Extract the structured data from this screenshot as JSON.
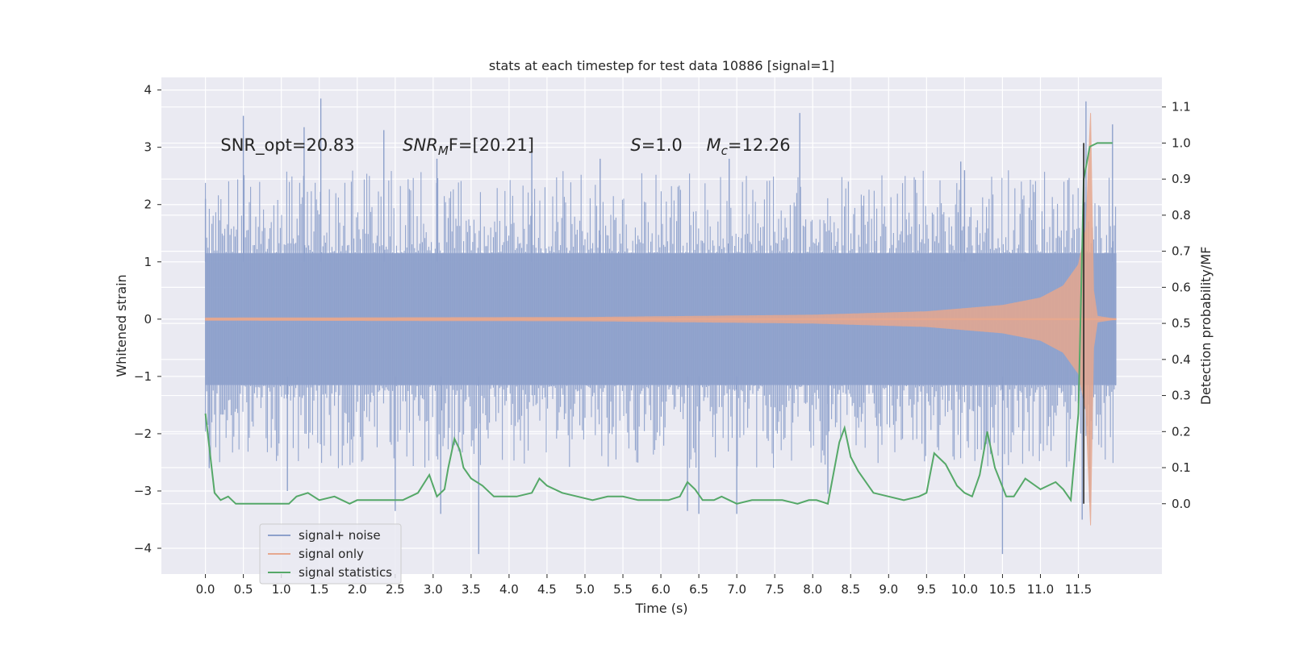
{
  "chart_data": {
    "type": "line",
    "title": "stats at each timestep for test data 10886 [signal=1]",
    "xlabel": "Time (s)",
    "ylabel": "Whitened strain",
    "y2label": "Detection probability/MF",
    "xlim": [
      -0.58,
      12.6
    ],
    "ylim": [
      -4.45,
      4.22
    ],
    "y2lim": [
      -0.195,
      1.182
    ],
    "x_ticks": [
      "0.0",
      "0.5",
      "1.0",
      "1.5",
      "2.0",
      "2.5",
      "3.0",
      "3.5",
      "4.0",
      "4.5",
      "5.0",
      "5.5",
      "6.0",
      "6.5",
      "7.0",
      "7.5",
      "8.0",
      "8.5",
      "9.0",
      "9.5",
      "10.0",
      "10.5",
      "11.0",
      "11.5"
    ],
    "y_ticks": [
      "4",
      "3",
      "2",
      "1",
      "0",
      "−1",
      "−2",
      "−3",
      "−4"
    ],
    "y2_ticks": [
      "1.1",
      "1.0",
      "0.9",
      "0.8",
      "0.7",
      "0.6",
      "0.5",
      "0.4",
      "0.3",
      "0.2",
      "0.1",
      "0.0"
    ],
    "annotations": [
      {
        "text": "SNR_opt=20.83",
        "x": 0.2,
        "y": 3.05
      },
      {
        "prefix": "SNR",
        "sub": "M",
        "suffix": "F=[20.21]",
        "x": 2.6,
        "y": 3.05
      },
      {
        "prefix": "S",
        "suffix": "=1.0",
        "x": 5.6,
        "y": 3.05
      },
      {
        "prefix": "M",
        "sub": "c",
        "suffix": "=12.26",
        "x": 6.6,
        "y": 3.05
      }
    ],
    "vlines": [
      {
        "x": 11.57,
        "y2_from": 0.0,
        "y2_to": 1.0
      }
    ],
    "legend": {
      "position": "lower-left",
      "entries": [
        {
          "label": "signal+ noise",
          "color": "#8da0cb"
        },
        {
          "label": "signal only",
          "color": "#e6a88f"
        },
        {
          "label": "signal statistics",
          "color": "#55a868"
        }
      ]
    },
    "series": [
      {
        "kind": "noise",
        "color": "#8da0cb",
        "x_range": [
          0.0,
          12.0
        ],
        "band_envelope": 1.15,
        "spikes_up": [
          [
            0.0,
            2.1
          ],
          [
            0.5,
            3.55
          ],
          [
            1.3,
            3.35
          ],
          [
            1.52,
            3.85
          ],
          [
            2.35,
            3.3
          ],
          [
            3.05,
            2.8
          ],
          [
            4.3,
            2.9
          ],
          [
            5.2,
            2.8
          ],
          [
            6.9,
            2.8
          ],
          [
            7.83,
            3.6
          ],
          [
            9.95,
            2.75
          ],
          [
            10.0,
            2.6
          ],
          [
            11.6,
            3.8
          ],
          [
            11.95,
            3.4
          ]
        ],
        "spikes_down": [
          [
            0.05,
            -2.6
          ],
          [
            1.08,
            -3.0
          ],
          [
            2.5,
            -3.35
          ],
          [
            3.1,
            -3.4
          ],
          [
            3.6,
            -4.1
          ],
          [
            6.35,
            -3.35
          ],
          [
            6.5,
            -3.4
          ],
          [
            7.0,
            -3.4
          ],
          [
            8.2,
            -3.05
          ],
          [
            10.5,
            -4.1
          ],
          [
            11.55,
            -3.5
          ],
          [
            11.65,
            -3.2
          ]
        ]
      },
      {
        "name": "signal only",
        "kind": "chirp",
        "color": "#e6a88f",
        "x_range": [
          0.0,
          12.0
        ],
        "merger_time": 11.68,
        "envelope": [
          [
            0.0,
            0.02
          ],
          [
            5.0,
            0.03
          ],
          [
            8.0,
            0.07
          ],
          [
            9.5,
            0.13
          ],
          [
            10.5,
            0.24
          ],
          [
            11.0,
            0.37
          ],
          [
            11.3,
            0.58
          ],
          [
            11.5,
            0.95
          ],
          [
            11.6,
            1.6
          ],
          [
            11.66,
            3.6
          ],
          [
            11.7,
            0.5
          ],
          [
            11.75,
            0.05
          ],
          [
            12.0,
            0.0
          ]
        ]
      },
      {
        "name": "signal statistics",
        "kind": "stat",
        "color": "#55a868",
        "x": [
          0.0,
          0.12,
          0.2,
          0.3,
          0.4,
          0.55,
          0.7,
          0.9,
          1.0,
          1.1,
          1.2,
          1.35,
          1.5,
          1.7,
          1.8,
          1.9,
          2.0,
          2.2,
          2.4,
          2.6,
          2.8,
          2.95,
          3.05,
          3.15,
          3.2,
          3.28,
          3.35,
          3.4,
          3.5,
          3.65,
          3.8,
          3.95,
          4.1,
          4.3,
          4.4,
          4.5,
          4.7,
          4.9,
          5.1,
          5.3,
          5.5,
          5.7,
          5.9,
          6.1,
          6.25,
          6.35,
          6.45,
          6.55,
          6.7,
          6.8,
          6.9,
          7.0,
          7.2,
          7.4,
          7.6,
          7.8,
          7.95,
          8.05,
          8.2,
          8.35,
          8.42,
          8.5,
          8.6,
          8.8,
          9.0,
          9.2,
          9.4,
          9.5,
          9.6,
          9.75,
          9.9,
          10.0,
          10.1,
          10.2,
          10.3,
          10.4,
          10.55,
          10.65,
          10.8,
          11.0,
          11.1,
          11.2,
          11.3,
          11.4,
          11.5,
          11.57,
          11.65,
          11.75,
          11.85,
          11.95
        ],
        "y": [
          0.25,
          0.03,
          0.01,
          0.02,
          0.0,
          0.0,
          0.0,
          0.0,
          0.0,
          0.0,
          0.02,
          0.03,
          0.01,
          0.02,
          0.01,
          0.0,
          0.01,
          0.01,
          0.01,
          0.01,
          0.03,
          0.08,
          0.02,
          0.04,
          0.1,
          0.18,
          0.15,
          0.1,
          0.07,
          0.05,
          0.02,
          0.02,
          0.02,
          0.03,
          0.07,
          0.05,
          0.03,
          0.02,
          0.01,
          0.02,
          0.02,
          0.01,
          0.01,
          0.01,
          0.02,
          0.06,
          0.04,
          0.01,
          0.01,
          0.02,
          0.01,
          0.0,
          0.01,
          0.01,
          0.01,
          0.0,
          0.01,
          0.01,
          0.0,
          0.17,
          0.21,
          0.13,
          0.09,
          0.03,
          0.02,
          0.01,
          0.02,
          0.03,
          0.14,
          0.11,
          0.05,
          0.03,
          0.02,
          0.08,
          0.2,
          0.1,
          0.02,
          0.02,
          0.07,
          0.04,
          0.05,
          0.06,
          0.04,
          0.01,
          0.25,
          0.9,
          0.99,
          1.0,
          1.0,
          1.0
        ]
      }
    ]
  }
}
